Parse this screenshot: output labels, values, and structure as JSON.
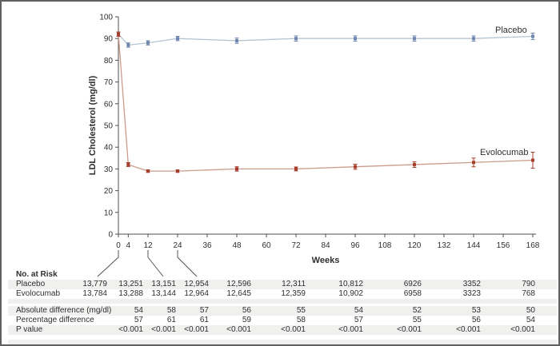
{
  "chart_data": {
    "type": "line",
    "title": "",
    "xlabel": "Weeks",
    "ylabel": "LDL Cholesterol (mg/dl)",
    "xlim": [
      0,
      168
    ],
    "ylim": [
      0,
      100
    ],
    "x_ticks": [
      0,
      4,
      12,
      24,
      36,
      48,
      60,
      72,
      84,
      96,
      108,
      120,
      132,
      144,
      156,
      168
    ],
    "y_ticks": [
      0,
      10,
      20,
      30,
      40,
      50,
      60,
      70,
      80,
      90,
      100
    ],
    "grid": false,
    "legend_position": "inline-right-of-lines",
    "x": [
      0,
      4,
      12,
      24,
      48,
      72,
      96,
      120,
      144,
      168
    ],
    "series": [
      {
        "name": "Placebo",
        "values": [
          92,
          87,
          88,
          90,
          89,
          90,
          90,
          90,
          90,
          91
        ],
        "errors": [
          1,
          1,
          1,
          1,
          1.2,
          1.2,
          1.2,
          1.2,
          1.2,
          1.5
        ],
        "line_color": "#b7c4d3",
        "marker_color": "#6e87ae"
      },
      {
        "name": "Evolocumab",
        "values": [
          92,
          32,
          29,
          29,
          30,
          30,
          31,
          32,
          33,
          34
        ],
        "errors": [
          1,
          0.9,
          0.6,
          0.6,
          1,
          0.9,
          1.2,
          1.3,
          2,
          3.7
        ],
        "line_color": "#cb9b8c",
        "marker_color": "#a63e2d"
      }
    ]
  },
  "risk_table": {
    "title": "No. at Risk",
    "columns_weeks": [
      0,
      4,
      12,
      24,
      48,
      72,
      96,
      120,
      144,
      168
    ],
    "rows": [
      {
        "label": "Placebo",
        "values": [
          "13,779",
          "13,251",
          "13,151",
          "12,954",
          "12,596",
          "12,311",
          "10,812",
          "6926",
          "3352",
          "790"
        ]
      },
      {
        "label": "Evolocumab",
        "values": [
          "13,784",
          "13,288",
          "13,144",
          "12,964",
          "12,645",
          "12,359",
          "10,902",
          "6958",
          "3323",
          "768"
        ]
      }
    ],
    "stats_rows": [
      {
        "label": "Absolute difference (mg/dl)",
        "values": [
          "",
          "54",
          "58",
          "57",
          "56",
          "55",
          "54",
          "52",
          "53",
          "50"
        ]
      },
      {
        "label": "Percentage difference",
        "values": [
          "",
          "57",
          "61",
          "61",
          "59",
          "58",
          "57",
          "55",
          "56",
          "54"
        ]
      },
      {
        "label": "P value",
        "values": [
          "",
          "<0.001",
          "<0.001",
          "<0.001",
          "<0.001",
          "<0.001",
          "<0.001",
          "<0.001",
          "<0.001",
          "<0.001"
        ]
      }
    ]
  },
  "colors": {
    "axis": "#4f4f51",
    "text": "#2e2e30",
    "stripe": "#f0f0ee",
    "leader_line": "#555557"
  }
}
